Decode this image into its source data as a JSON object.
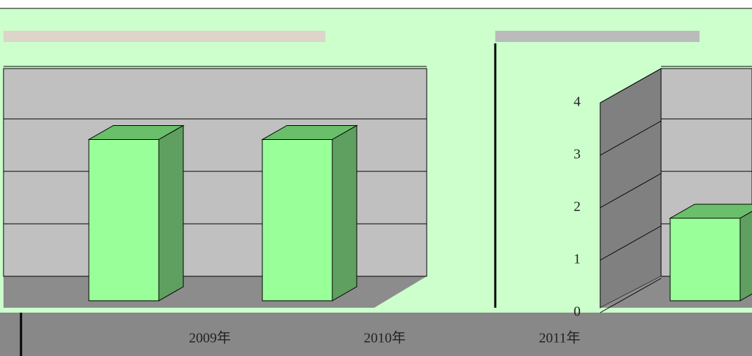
{
  "chart_data": {
    "type": "bar3d",
    "categories": [
      "2009年",
      "2010年",
      "2011年"
    ],
    "values": [
      3.3,
      3.3,
      1.8
    ],
    "color": "#99ff99",
    "ylim": [
      0,
      4
    ],
    "yticks": [
      0,
      1,
      2,
      3,
      4
    ],
    "grid": true
  }
}
